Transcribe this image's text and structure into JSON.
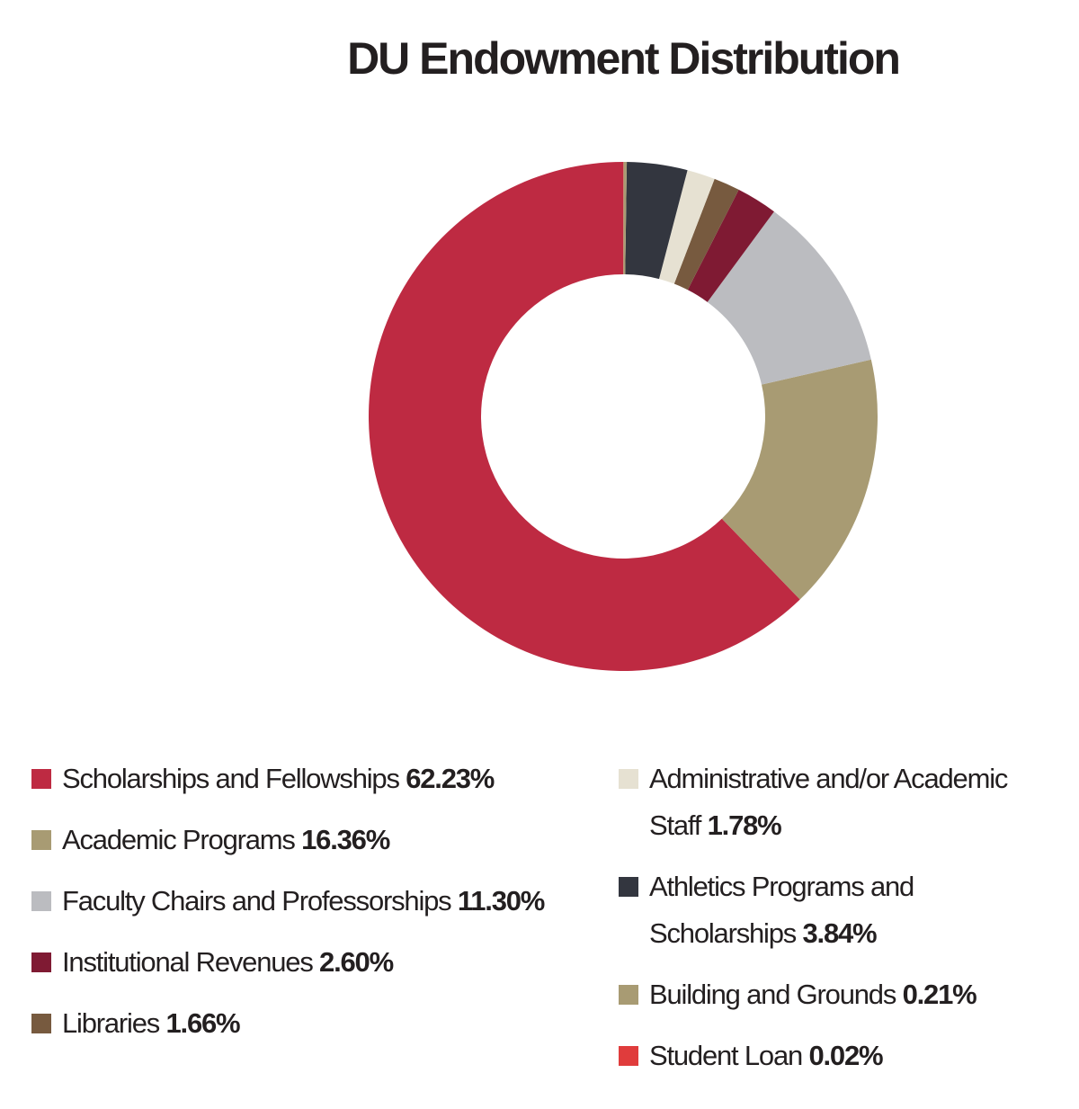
{
  "chart_data": {
    "type": "donut",
    "title": "DU Endowment Distribution",
    "categories": [
      "Scholarships and Fellowships",
      "Academic Programs",
      "Faculty Chairs and Professorships",
      "Institutional Revenues",
      "Libraries",
      "Administrative and/or Academic Staff",
      "Athletics Programs and Scholarships",
      "Building and Grounds",
      "Student Loan"
    ],
    "values": [
      62.23,
      16.36,
      11.3,
      2.6,
      1.66,
      1.78,
      3.84,
      0.21,
      0.02
    ],
    "value_labels": [
      "62.23%",
      "16.36%",
      "11.30%",
      "2.60%",
      "1.66%",
      "1.78%",
      "3.84%",
      "0.21%",
      "0.02%"
    ],
    "colors": [
      "#be2a42",
      "#a89b73",
      "#bbbcc0",
      "#7f1a33",
      "#775a3f",
      "#e6e1d2",
      "#33363f",
      "#a89b73",
      "#e03c3c"
    ]
  }
}
